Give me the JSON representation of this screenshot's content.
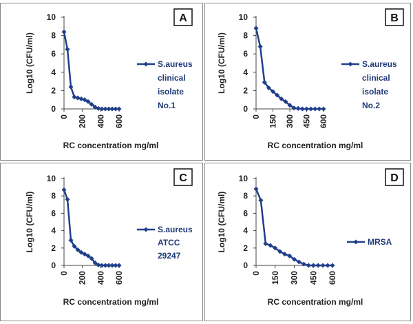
{
  "colors": {
    "series": "#1f3f8a",
    "axis": "#444444",
    "border": "#888888"
  },
  "chart_data": [
    {
      "type": "line",
      "panel_label": "A",
      "xlabel": "RC concentration mg/ml",
      "ylabel": "Log10 (CFU/ml)",
      "xticks": [
        0,
        200,
        400,
        600
      ],
      "xlim": [
        0,
        600
      ],
      "yticks": [
        0,
        2,
        4,
        6,
        8,
        10
      ],
      "ylim": [
        0,
        10
      ],
      "legend_position": "right",
      "series": [
        {
          "name_lines": [
            "S.aureus",
            "clinical",
            "isolate",
            "No.1"
          ],
          "x": [
            0,
            37.5,
            75,
            112.5,
            150,
            187.5,
            225,
            262.5,
            300,
            337.5,
            375,
            412.5,
            450,
            487.5,
            525,
            562.5,
            600
          ],
          "y": [
            8.4,
            6.5,
            2.4,
            1.3,
            1.2,
            1.1,
            1.0,
            0.8,
            0.5,
            0.2,
            0.05,
            0,
            0,
            0,
            0,
            0,
            0
          ]
        }
      ]
    },
    {
      "type": "line",
      "panel_label": "B",
      "xlabel": "RC concentration mg/ml",
      "ylabel": "Log10 (CFU/ml)",
      "xticks": [
        0,
        150,
        300,
        450,
        600
      ],
      "xlim": [
        0,
        600
      ],
      "yticks": [
        0,
        2,
        4,
        6,
        8,
        10
      ],
      "ylim": [
        0,
        10
      ],
      "legend_position": "right",
      "series": [
        {
          "name_lines": [
            "S.aureus",
            "clinical",
            "isolate",
            "No.2"
          ],
          "x": [
            0,
            37.5,
            75,
            112.5,
            150,
            187.5,
            225,
            262.5,
            300,
            337.5,
            375,
            412.5,
            450,
            487.5,
            525,
            562.5,
            600
          ],
          "y": [
            8.8,
            6.8,
            2.9,
            2.3,
            1.9,
            1.5,
            1.1,
            0.8,
            0.4,
            0.1,
            0.05,
            0,
            0,
            0,
            0,
            0,
            0
          ]
        }
      ]
    },
    {
      "type": "line",
      "panel_label": "C",
      "xlabel": "RC concentration mg/ml",
      "ylabel": "Log10 (CFU/ml)",
      "xticks": [
        0,
        200,
        400,
        600
      ],
      "xlim": [
        0,
        600
      ],
      "yticks": [
        0,
        2,
        4,
        6,
        8,
        10
      ],
      "ylim": [
        0,
        10
      ],
      "legend_position": "right",
      "series": [
        {
          "name_lines": [
            "S.aureus",
            "ATCC",
            "29247"
          ],
          "x": [
            0,
            37.5,
            75,
            112.5,
            150,
            187.5,
            225,
            262.5,
            300,
            337.5,
            375,
            412.5,
            450,
            487.5,
            525,
            562.5,
            600
          ],
          "y": [
            8.7,
            7.6,
            2.9,
            2.2,
            1.8,
            1.5,
            1.3,
            1.1,
            0.8,
            0.3,
            0.05,
            0,
            0,
            0,
            0,
            0,
            0
          ]
        }
      ]
    },
    {
      "type": "line",
      "panel_label": "D",
      "xlabel": "RC concentration mg/ml",
      "ylabel": "Log10 (CFU/ml)",
      "xticks": [
        0,
        150,
        300,
        450,
        600
      ],
      "xlim": [
        0,
        600
      ],
      "yticks": [
        0,
        2,
        4,
        6,
        8,
        10
      ],
      "ylim": [
        0,
        10
      ],
      "legend_position": "right",
      "series": [
        {
          "name_lines": [
            "MRSA"
          ],
          "x": [
            0,
            37.5,
            75,
            112.5,
            150,
            187.5,
            225,
            262.5,
            300,
            337.5,
            375,
            412.5,
            450,
            487.5,
            525,
            562.5,
            600
          ],
          "y": [
            8.8,
            7.5,
            2.5,
            2.3,
            2.0,
            1.6,
            1.3,
            1.1,
            0.7,
            0.4,
            0.15,
            0,
            0,
            0,
            0,
            0,
            0
          ]
        }
      ]
    }
  ]
}
